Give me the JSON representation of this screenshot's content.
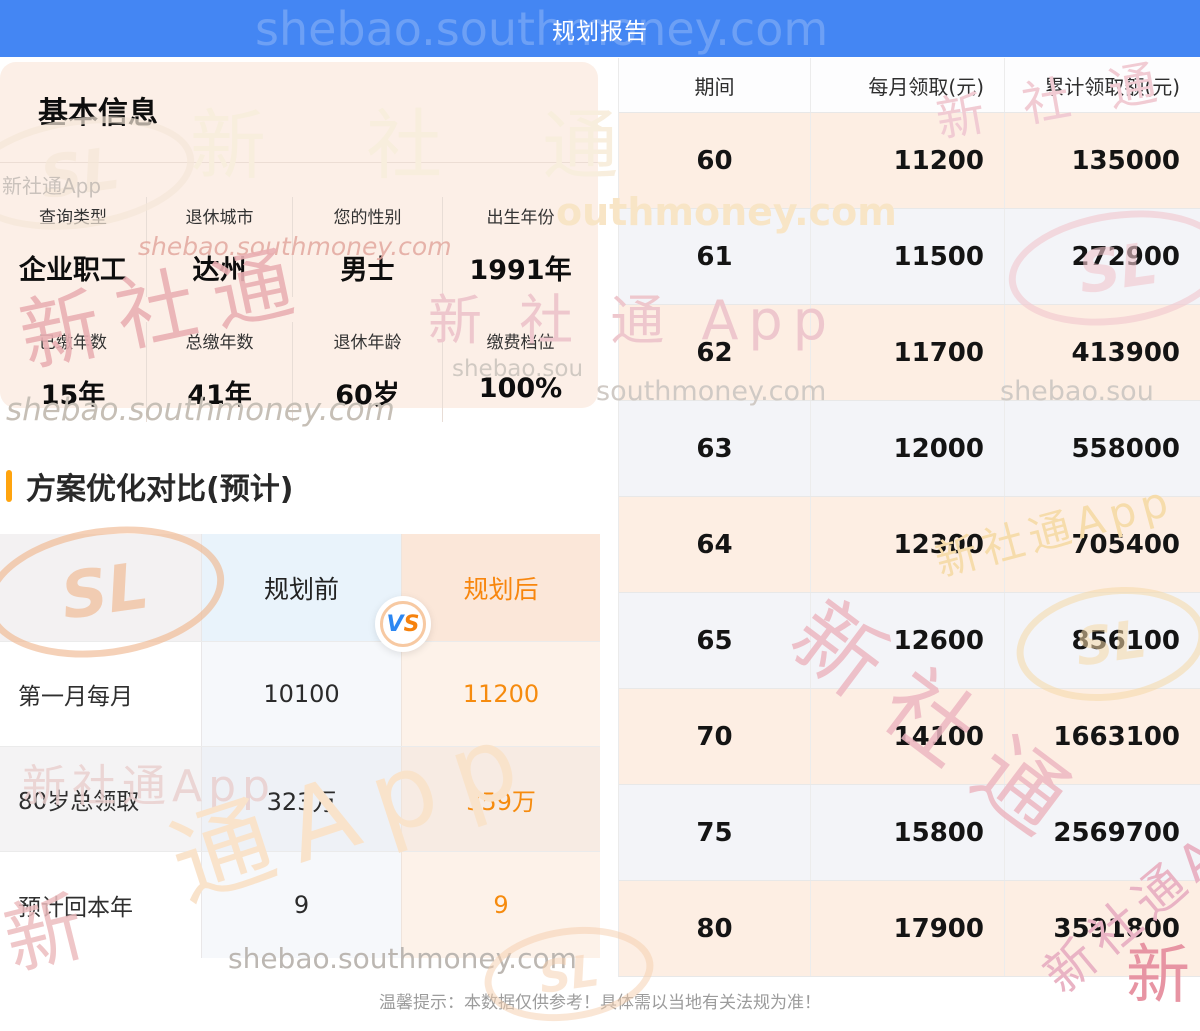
{
  "topbar": {
    "title": "规划报告"
  },
  "basic_info": {
    "title": "基本信息",
    "fields": [
      {
        "label": "查询类型",
        "value": "企业职工"
      },
      {
        "label": "退休城市",
        "value": "达州"
      },
      {
        "label": "您的性别",
        "value": "男士"
      },
      {
        "label": "出生年份",
        "value": "1991年"
      },
      {
        "label": "已缴年数",
        "value": "15年"
      },
      {
        "label": "总缴年数",
        "value": "41年"
      },
      {
        "label": "退休年龄",
        "value": "60岁"
      },
      {
        "label": "缴费档位",
        "value": "100%"
      }
    ]
  },
  "comparison": {
    "section_title": "方案优化对比(预计)",
    "header": {
      "before": "规划前",
      "after": "规划后",
      "vs_v": "V",
      "vs_s": "S"
    },
    "rows": [
      {
        "label": "第一月每月",
        "before": "10100",
        "after": "11200"
      },
      {
        "label": "80岁总领取",
        "before": "323万",
        "after": "359万"
      },
      {
        "label": "预计回本年",
        "before": "9",
        "after": "9"
      }
    ]
  },
  "payout_table": {
    "columns": [
      "期间",
      "每月领取(元)",
      "累计领取额(元)"
    ],
    "rows": [
      [
        "60",
        "11200",
        "135000"
      ],
      [
        "61",
        "11500",
        "272900"
      ],
      [
        "62",
        "11700",
        "413900"
      ],
      [
        "63",
        "12000",
        "558000"
      ],
      [
        "64",
        "12300",
        "705400"
      ],
      [
        "65",
        "12600",
        "856100"
      ],
      [
        "70",
        "14100",
        "1663100"
      ],
      [
        "75",
        "15800",
        "2569700"
      ],
      [
        "80",
        "17900",
        "3591800"
      ]
    ]
  },
  "footer": {
    "tip": "温馨提示：本数据仅供参考！具体需以当地有关法规为准！"
  },
  "watermarks": {
    "domain": "shebao.southmoney.com",
    "domain_partial_1": "shebao.sou",
    "domain_partial_2": "southmoney.com",
    "domain_partial_3": "outhmoney.com",
    "brand": "新社通",
    "brand_spaced": "新 社 通",
    "brand_app": "新社通App",
    "brand_app_spaced": "新 社 通 App",
    "brand_partial": "通App",
    "brand_char": "新",
    "logo_text": "SL"
  },
  "colors": {
    "accent_blue": "#4486f3",
    "accent_orange": "#f8860d",
    "bar_orange": "#ffa40e",
    "panel_peach": "#fcefe7"
  }
}
